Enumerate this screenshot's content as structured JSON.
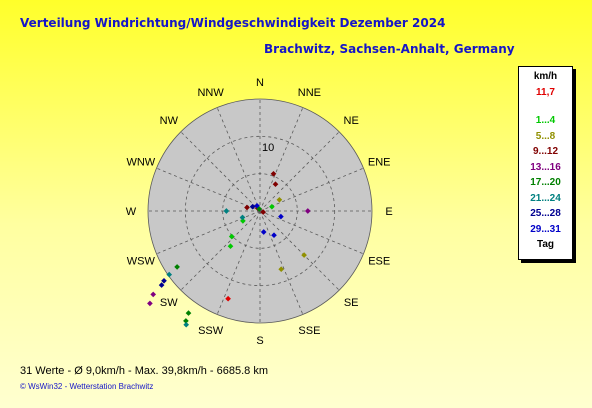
{
  "header": {
    "title": "Verteilung Windrichtung/Windgeschwindigkeit  Dezember 2024",
    "location": "Brachwitz, Sachsen-Anhalt, Germany"
  },
  "footer": {
    "stats": "31 Werte   -   Ø 9,0km/h  -  Max. 39,8km/h  -   6685.8 km",
    "credit": "© WsWin32  -  Wetterstation Brachwitz"
  },
  "legend": {
    "header": "km/h",
    "value": "11,7",
    "value_color": "#e00000",
    "classes": [
      {
        "label": "1...4",
        "color": "#00c800"
      },
      {
        "label": "5...8",
        "color": "#909000"
      },
      {
        "label": "9...12",
        "color": "#800000"
      },
      {
        "label": "13...16",
        "color": "#800080"
      },
      {
        "label": "17...20",
        "color": "#008000"
      },
      {
        "label": "21...24",
        "color": "#008080"
      },
      {
        "label": "25...28",
        "color": "#000090"
      },
      {
        "label": "29...31",
        "color": "#0000c8"
      }
    ],
    "footer": "Tag"
  },
  "chart_data": {
    "type": "scatter",
    "subtype": "polar wind rose",
    "directions": [
      "N",
      "NNE",
      "NE",
      "ENE",
      "E",
      "ESE",
      "SE",
      "SSE",
      "S",
      "SSW",
      "SW",
      "WSW",
      "W",
      "WNW",
      "NW",
      "NNW"
    ],
    "ring_label": "10",
    "ring_label_value": 10,
    "radial_max": 30,
    "rings": [
      10,
      20,
      30
    ],
    "grid": true,
    "colors": {
      "disk": "#c8c8c8",
      "grid": "#5a5a5a"
    },
    "points": [
      {
        "direction_deg": 20,
        "speed": 10.6,
        "color": "#800000"
      },
      {
        "direction_deg": 30,
        "speed": 8.3,
        "color": "#800000"
      },
      {
        "direction_deg": 60,
        "speed": 6.0,
        "color": "#909000"
      },
      {
        "direction_deg": 90,
        "speed": 12.8,
        "color": "#800080"
      },
      {
        "direction_deg": 110,
        "speed": 0.9,
        "color": "#800000"
      },
      {
        "direction_deg": 135,
        "speed": 16.7,
        "color": "#909000"
      },
      {
        "direction_deg": 160,
        "speed": 16.6,
        "color": "#909000"
      },
      {
        "direction_deg": 150,
        "speed": 7.5,
        "color": "#0000c8"
      },
      {
        "direction_deg": 170,
        "speed": 5.7,
        "color": "#0000c8"
      },
      {
        "direction_deg": 105,
        "speed": 5.8,
        "color": "#0000c8"
      },
      {
        "direction_deg": 70,
        "speed": 3.4,
        "color": "#00c800"
      },
      {
        "direction_deg": 200,
        "speed": 25.0,
        "color": "#e00000"
      },
      {
        "direction_deg": 215,
        "speed": 33.4,
        "color": "#008000"
      },
      {
        "direction_deg": 214,
        "speed": 35.5,
        "color": "#008000"
      },
      {
        "direction_deg": 213,
        "speed": 36.3,
        "color": "#008080"
      },
      {
        "direction_deg": 220,
        "speed": 12.3,
        "color": "#00c800"
      },
      {
        "direction_deg": 228,
        "speed": 10.2,
        "color": "#00c800"
      },
      {
        "direction_deg": 236,
        "speed": 26.8,
        "color": "#008000"
      },
      {
        "direction_deg": 235,
        "speed": 29.7,
        "color": "#008080"
      },
      {
        "direction_deg": 234,
        "speed": 31.8,
        "color": "#000090"
      },
      {
        "direction_deg": 233,
        "speed": 33.0,
        "color": "#000090"
      },
      {
        "direction_deg": 232,
        "speed": 36.3,
        "color": "#800080"
      },
      {
        "direction_deg": 230,
        "speed": 38.5,
        "color": "#800080"
      },
      {
        "direction_deg": 240,
        "speed": 5.3,
        "color": "#00c800"
      },
      {
        "direction_deg": 250,
        "speed": 5.0,
        "color": "#008080"
      },
      {
        "direction_deg": 270,
        "speed": 9.0,
        "color": "#008080"
      },
      {
        "direction_deg": 285,
        "speed": 3.6,
        "color": "#800000"
      },
      {
        "direction_deg": 300,
        "speed": 2.3,
        "color": "#000090"
      },
      {
        "direction_deg": 320,
        "speed": 1.0,
        "color": "#800000"
      },
      {
        "direction_deg": 330,
        "speed": 1.6,
        "color": "#0000c8"
      },
      {
        "direction_deg": 340,
        "speed": 0.6,
        "color": "#008000"
      }
    ]
  }
}
